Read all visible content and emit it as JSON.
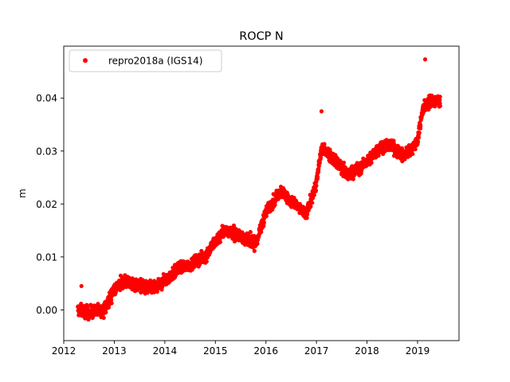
{
  "chart_data": {
    "type": "scatter",
    "title": "ROCP N",
    "xlabel": "",
    "ylabel": "m",
    "xlim": [
      2012.0,
      2019.82
    ],
    "ylim": [
      -0.0058,
      0.0498
    ],
    "x_ticks": [
      2012,
      2013,
      2014,
      2015,
      2016,
      2017,
      2018,
      2019
    ],
    "y_ticks": [
      0.0,
      0.01,
      0.02,
      0.03,
      0.04
    ],
    "y_tick_labels": [
      "0.00",
      "0.01",
      "0.02",
      "0.03",
      "0.04"
    ],
    "grid": false,
    "legend": {
      "position": "upper left"
    },
    "series": [
      {
        "name": "repro2018a (IGS14)",
        "color": "#ff0000",
        "marker": "circle",
        "trend_x": [
          2012.28,
          2012.5,
          2012.8,
          2013.0,
          2013.2,
          2013.5,
          2013.8,
          2014.0,
          2014.3,
          2014.5,
          2014.8,
          2015.0,
          2015.2,
          2015.5,
          2015.8,
          2016.0,
          2016.3,
          2016.5,
          2016.8,
          2017.0,
          2017.1,
          2017.3,
          2017.6,
          2017.9,
          2018.1,
          2018.3,
          2018.5,
          2018.7,
          2018.85,
          2019.0,
          2019.1,
          2019.25,
          2019.45
        ],
        "trend_y": [
          0.0,
          -0.0005,
          0.0,
          0.004,
          0.0055,
          0.0045,
          0.004,
          0.0055,
          0.008,
          0.0085,
          0.01,
          0.013,
          0.015,
          0.014,
          0.0125,
          0.0185,
          0.0225,
          0.0205,
          0.018,
          0.024,
          0.0305,
          0.029,
          0.0255,
          0.027,
          0.029,
          0.031,
          0.031,
          0.029,
          0.03,
          0.032,
          0.038,
          0.0395,
          0.0395
        ],
        "outliers": [
          [
            2012.35,
            0.0045
          ],
          [
            2017.1,
            0.0375
          ],
          [
            2019.15,
            0.0473
          ]
        ]
      }
    ]
  }
}
